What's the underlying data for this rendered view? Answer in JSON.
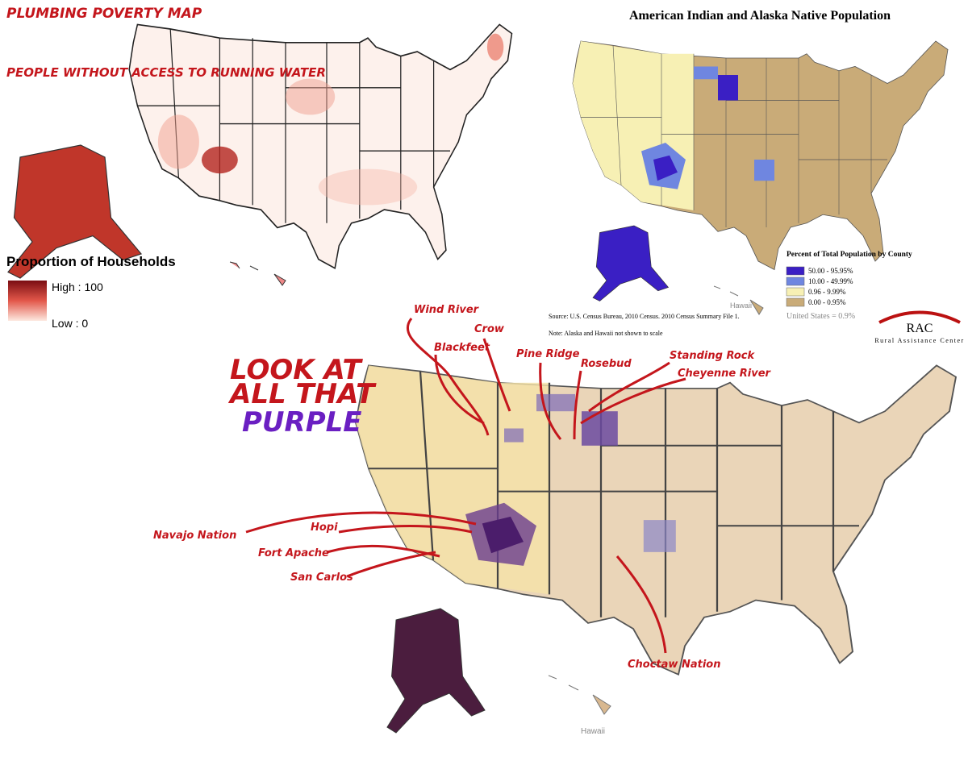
{
  "plumbing_map": {
    "title": "PLUMBING POVERTY MAP",
    "subtitle": "PEOPLE WITHOUT ACCESS TO RUNNING WATER",
    "legend": {
      "title": "Proportion of Households",
      "high": "High : 100",
      "low": "Low : 0"
    }
  },
  "native_map": {
    "title": "American Indian and Alaska Native Population",
    "legend": {
      "title": "Percent of Total Population by County",
      "items": [
        {
          "label": "50.00 - 95.95%",
          "color": "#3a1fc4"
        },
        {
          "label": "10.00 - 49.99%",
          "color": "#6f86e0"
        },
        {
          "label": "0.96 - 9.99%",
          "color": "#f7f0b4"
        },
        {
          "label": "0.00 - 0.95%",
          "color": "#c9ab78"
        }
      ],
      "note": "United States = 0.9%"
    },
    "source": "Source: U.S. Census Bureau, 2010 Census. 2010 Census Summary File 1.",
    "scale_note": "Note: Alaska and Hawaii not shown to scale",
    "hawaii": "Hawaii",
    "logo": {
      "mark": "RAC",
      "name": "Rural Assistance Center"
    }
  },
  "overlay_map": {
    "headline": [
      "LOOK AT",
      "ALL THAT"
    ],
    "highlight": "PURPLE",
    "annotations": [
      "Wind River",
      "Crow",
      "Blackfeet",
      "Pine Ridge",
      "Rosebud",
      "Standing Rock",
      "Cheyenne River",
      "Navajo Nation",
      "Hopi",
      "Fort Apache",
      "San Carlos",
      "Choctaw Nation"
    ],
    "hawaii": "Hawaii"
  }
}
